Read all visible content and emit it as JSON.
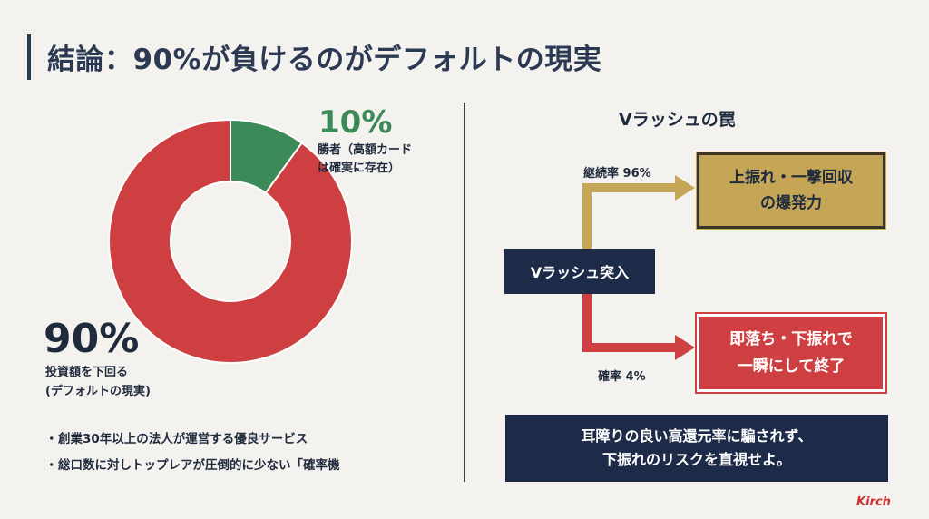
{
  "title": "結論：90%が負けるのがデフォルトの現実",
  "chart_data": {
    "type": "pie",
    "donut": true,
    "slices": [
      {
        "value": 10,
        "color": "#3b8a57"
      },
      {
        "value": 90,
        "color": "#cd3f40"
      }
    ]
  },
  "left": {
    "winner_pct": "10%",
    "winner_label_1": "勝者（高額カード",
    "winner_label_2": "は確実に存在）",
    "loser_pct": "90%",
    "loser_label_1": "投資額を下回る",
    "loser_label_2": "(デフォルトの現実)",
    "bullets": [
      "創業30年以上の法人が運営する優良サービス",
      "総口数に対しトップレアが圧倒的に少ない「確率機"
    ]
  },
  "right": {
    "title": "Vラッシュの罠",
    "entry": "Vラッシュ突入",
    "continue_label": "継続率 96%",
    "drop_label": "確率 4%",
    "gold_line1": "上振れ・一撃回収",
    "gold_line2": "の爆発力",
    "red_line1": "即落ち・下振れで",
    "red_line2": "一瞬にして終了",
    "warn_line1": "耳障りの良い高還元率に騙されず、",
    "warn_line2": "下振れのリスクを直視せよ。"
  },
  "colors": {
    "navy": "#1d2b48",
    "gold": "#c5a656",
    "red": "#cd3f40",
    "green": "#3b8a57",
    "background": "#f4f2ee"
  },
  "logo": {
    "text": "Kirch"
  }
}
